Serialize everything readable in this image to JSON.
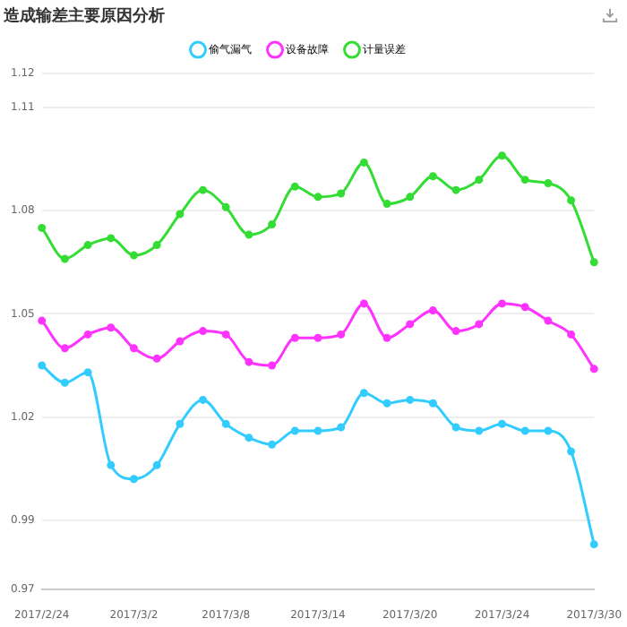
{
  "chart_data": {
    "type": "line",
    "title": "造成输差主要原因分析",
    "categories": [
      "2017/2/24",
      null,
      null,
      null,
      "2017/3/2",
      null,
      null,
      null,
      "2017/3/8",
      null,
      null,
      null,
      "2017/3/14",
      null,
      null,
      null,
      "2017/3/20",
      null,
      null,
      null,
      "2017/3/24",
      null,
      null,
      null,
      "2017/3/30"
    ],
    "series": [
      {
        "name": "偷气漏气",
        "color": "#33ccff",
        "values": [
          1.035,
          1.03,
          1.033,
          1.006,
          1.002,
          1.006,
          1.018,
          1.025,
          1.018,
          1.014,
          1.012,
          1.016,
          1.016,
          1.017,
          1.027,
          1.024,
          1.025,
          1.024,
          1.017,
          1.016,
          1.018,
          1.016,
          1.016,
          1.01,
          0.983
        ]
      },
      {
        "name": "设备故障",
        "color": "#ff33ff",
        "values": [
          1.048,
          1.04,
          1.044,
          1.046,
          1.04,
          1.037,
          1.042,
          1.045,
          1.044,
          1.036,
          1.035,
          1.043,
          1.043,
          1.044,
          1.053,
          1.043,
          1.047,
          1.051,
          1.045,
          1.047,
          1.053,
          1.052,
          1.048,
          1.044,
          1.034
        ]
      },
      {
        "name": "计量误差",
        "color": "#33dd33",
        "values": [
          1.075,
          1.066,
          1.07,
          1.072,
          1.067,
          1.07,
          1.079,
          1.086,
          1.081,
          1.073,
          1.076,
          1.087,
          1.084,
          1.085,
          1.094,
          1.082,
          1.084,
          1.09,
          1.086,
          1.089,
          1.096,
          1.089,
          1.088,
          1.083,
          1.065
        ]
      }
    ],
    "ylim": [
      0.97,
      1.12
    ],
    "yticks": [
      0.97,
      0.99,
      1.02,
      1.05,
      1.08,
      1.11,
      1.12
    ],
    "grid": "y",
    "legend": "top",
    "marker": "circle",
    "line_style": "solid"
  }
}
